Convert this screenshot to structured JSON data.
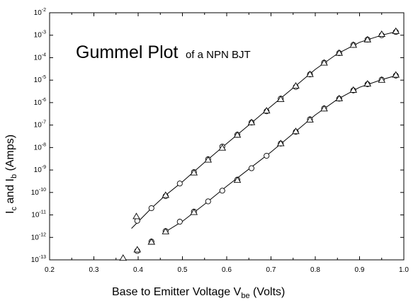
{
  "chart_data": {
    "type": "scatter",
    "title": "Gummel Plot",
    "subtitle": "of a NPN BJT",
    "xlabel": {
      "main": "Base to Emitter Voltage  V",
      "sub": "be",
      "unit": " (Volts)"
    },
    "ylabel": {
      "p1": "I",
      "s1": "c",
      "p2": " and I",
      "s2": "b",
      "p3": " (Amps)"
    },
    "xlim": [
      0.2,
      1.0
    ],
    "ylim": [
      1e-13,
      0.01
    ],
    "yscale": "log",
    "grid": false,
    "x_ticks": [
      "0.2",
      "0.3",
      "0.4",
      "0.5",
      "0.6",
      "0.7",
      "0.8",
      "0.9",
      "1.0"
    ],
    "y_ticks": [
      {
        "base": "10",
        "exp": "-13",
        "value": 1e-13
      },
      {
        "base": "10",
        "exp": "-12",
        "value": 1e-12
      },
      {
        "base": "10",
        "exp": "-11",
        "value": 1e-11
      },
      {
        "base": "10",
        "exp": "-10",
        "value": 1e-10
      },
      {
        "base": "10",
        "exp": "-9",
        "value": 1e-09
      },
      {
        "base": "10",
        "exp": "-8",
        "value": 1e-08
      },
      {
        "base": "10",
        "exp": "-7",
        "value": 1e-07
      },
      {
        "base": "10",
        "exp": "-6",
        "value": 1e-06
      },
      {
        "base": "10",
        "exp": "-5",
        "value": 1e-05
      },
      {
        "base": "10",
        "exp": "-4",
        "value": 0.0001
      },
      {
        "base": "10",
        "exp": "-3",
        "value": 0.001
      },
      {
        "base": "10",
        "exp": "-2",
        "value": 0.01
      }
    ],
    "series": [
      {
        "marker": "circle",
        "points": [
          [
            0.398,
            5.5e-12
          ],
          [
            0.43,
            2e-11
          ],
          [
            0.462,
            6.9e-11
          ],
          [
            0.494,
            2.5e-10
          ],
          [
            0.526,
            8e-10
          ],
          [
            0.558,
            3e-09
          ],
          [
            0.59,
            1.1e-08
          ],
          [
            0.624,
            3.7e-08
          ],
          [
            0.656,
            1.3e-07
          ],
          [
            0.69,
            4.1e-07
          ],
          [
            0.722,
            1.5e-06
          ],
          [
            0.756,
            5e-06
          ],
          [
            0.788,
            1.8e-05
          ],
          [
            0.82,
            6e-05
          ],
          [
            0.854,
            0.00016
          ],
          [
            0.886,
            0.00037
          ],
          [
            0.918,
            0.00064
          ],
          [
            0.95,
            0.001
          ],
          [
            0.982,
            0.0014
          ]
        ]
      },
      {
        "marker": "triangle",
        "points": [
          [
            0.396,
            8.5e-12
          ],
          [
            0.462,
            7.5e-11
          ],
          [
            0.526,
            7.5e-10
          ],
          [
            0.558,
            2.8e-09
          ],
          [
            0.59,
            9.5e-09
          ],
          [
            0.624,
            3.6e-08
          ],
          [
            0.656,
            1.3e-07
          ],
          [
            0.69,
            4.3e-07
          ],
          [
            0.722,
            1.4e-06
          ],
          [
            0.756,
            5.5e-06
          ],
          [
            0.788,
            1.8e-05
          ],
          [
            0.82,
            5.8e-05
          ],
          [
            0.854,
            0.00016
          ],
          [
            0.886,
            0.00036
          ],
          [
            0.918,
            0.00063
          ],
          [
            0.95,
            0.0011
          ],
          [
            0.982,
            0.0015
          ]
        ]
      },
      {
        "marker": "circle",
        "points": [
          [
            0.398,
            2.5e-13
          ],
          [
            0.43,
            6.5e-13
          ],
          [
            0.462,
            1.9e-12
          ],
          [
            0.494,
            5e-12
          ],
          [
            0.526,
            1.4e-11
          ],
          [
            0.558,
            4e-11
          ],
          [
            0.59,
            1.2e-10
          ],
          [
            0.624,
            3.7e-10
          ],
          [
            0.656,
            1.2e-09
          ],
          [
            0.69,
            4.3e-09
          ],
          [
            0.722,
            1.5e-08
          ],
          [
            0.756,
            5e-08
          ],
          [
            0.788,
            1.8e-07
          ],
          [
            0.82,
            5.5e-07
          ],
          [
            0.854,
            1.5e-06
          ],
          [
            0.886,
            3.5e-06
          ],
          [
            0.918,
            6.6e-06
          ],
          [
            0.95,
            1.05e-05
          ],
          [
            0.982,
            1.6e-05
          ]
        ]
      },
      {
        "marker": "triangle",
        "points": [
          [
            0.366,
            1.2e-13
          ],
          [
            0.398,
            2.8e-13
          ],
          [
            0.43,
            6.2e-13
          ],
          [
            0.462,
            1.8e-12
          ],
          [
            0.526,
            1.3e-11
          ],
          [
            0.624,
            3.5e-10
          ],
          [
            0.722,
            1.5e-08
          ],
          [
            0.756,
            5.2e-08
          ],
          [
            0.788,
            1.7e-07
          ],
          [
            0.82,
            5.3e-07
          ],
          [
            0.854,
            1.5e-06
          ],
          [
            0.886,
            3.6e-06
          ],
          [
            0.918,
            6.8e-06
          ],
          [
            0.95,
            1e-05
          ],
          [
            0.982,
            1.7e-05
          ]
        ]
      }
    ],
    "fit_lines": [
      {
        "points": [
          [
            0.385,
            2.5e-12
          ],
          [
            0.4,
            5e-12
          ],
          [
            0.43,
            2e-11
          ],
          [
            0.46,
            7e-11
          ],
          [
            0.5,
            3e-10
          ],
          [
            0.55,
            2.2e-09
          ],
          [
            0.6,
            1.5e-08
          ],
          [
            0.65,
            1e-07
          ],
          [
            0.7,
            6.8e-07
          ],
          [
            0.75,
            4.5e-06
          ],
          [
            0.8,
            3e-05
          ],
          [
            0.85,
            0.00015
          ],
          [
            0.9,
            0.00048
          ],
          [
            0.95,
            0.001
          ],
          [
            0.98,
            0.0014
          ]
        ]
      },
      {
        "points": [
          [
            0.46,
            1.7e-12
          ],
          [
            0.5,
            5.2e-12
          ],
          [
            0.55,
            3e-11
          ],
          [
            0.6,
            1.9e-10
          ],
          [
            0.65,
            1.1e-09
          ],
          [
            0.7,
            6.3e-09
          ],
          [
            0.75,
            4.2e-08
          ],
          [
            0.8,
            2.8e-07
          ],
          [
            0.85,
            1.4e-06
          ],
          [
            0.9,
            4.8e-06
          ],
          [
            0.95,
            1.05e-05
          ],
          [
            0.98,
            1.55e-05
          ]
        ]
      }
    ]
  }
}
